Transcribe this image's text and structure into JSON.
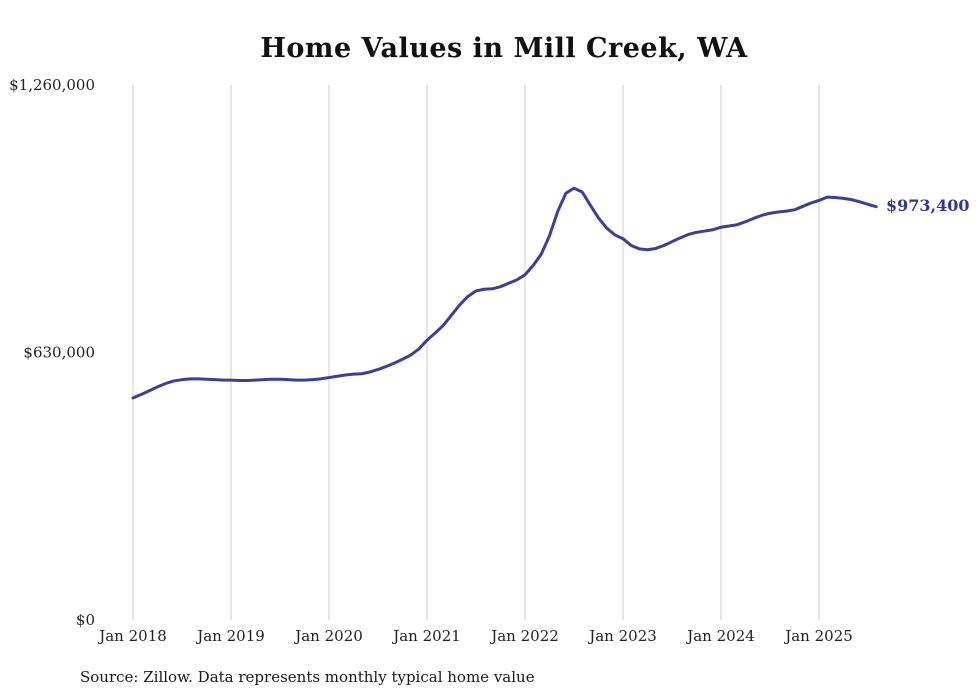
{
  "page": {
    "title": "Home Values in Mill Creek, WA",
    "source_note": "Source: Zillow. Data represents monthly typical home value"
  },
  "annotation": {
    "latest_value_label": "$973,400"
  },
  "chart_data": {
    "type": "line",
    "title": "Home Values in Mill Creek, WA",
    "series_name": "Monthly typical home value",
    "xlabel": "",
    "ylabel": "",
    "ylim": [
      0,
      1260000
    ],
    "grid": "vertical-only",
    "legend": "none",
    "line_color": "#3d3d9c",
    "gridline_color": "#cccccc",
    "latest_value": 973400,
    "latest_value_label": "$973,400",
    "x_tick_labels": [
      "Jan 2018",
      "Jan 2019",
      "Jan 2020",
      "Jan 2021",
      "Jan 2022",
      "Jan 2023",
      "Jan 2024",
      "Jan 2025"
    ],
    "y_ticks": [
      {
        "label": "$0",
        "value": 0
      },
      {
        "label": "$630,000",
        "value": 630000
      },
      {
        "label": "$1,260,000",
        "value": 1260000
      }
    ],
    "x": [
      "2018-01",
      "2018-02",
      "2018-03",
      "2018-04",
      "2018-05",
      "2018-06",
      "2018-07",
      "2018-08",
      "2018-09",
      "2018-10",
      "2018-11",
      "2018-12",
      "2019-01",
      "2019-02",
      "2019-03",
      "2019-04",
      "2019-05",
      "2019-06",
      "2019-07",
      "2019-08",
      "2019-09",
      "2019-10",
      "2019-11",
      "2019-12",
      "2020-01",
      "2020-02",
      "2020-03",
      "2020-04",
      "2020-05",
      "2020-06",
      "2020-07",
      "2020-08",
      "2020-09",
      "2020-10",
      "2020-11",
      "2020-12",
      "2021-01",
      "2021-02",
      "2021-03",
      "2021-04",
      "2021-05",
      "2021-06",
      "2021-07",
      "2021-08",
      "2021-09",
      "2021-10",
      "2021-11",
      "2021-12",
      "2022-01",
      "2022-02",
      "2022-03",
      "2022-04",
      "2022-05",
      "2022-06",
      "2022-07",
      "2022-08",
      "2022-09",
      "2022-10",
      "2022-11",
      "2022-12",
      "2023-01",
      "2023-02",
      "2023-03",
      "2023-04",
      "2023-05",
      "2023-06",
      "2023-07",
      "2023-08",
      "2023-09",
      "2023-10",
      "2023-11",
      "2023-12",
      "2024-01",
      "2024-02",
      "2024-03",
      "2024-04",
      "2024-05",
      "2024-06",
      "2024-07",
      "2024-08",
      "2024-09",
      "2024-10",
      "2024-11",
      "2024-12",
      "2025-01",
      "2025-02",
      "2025-03",
      "2025-04",
      "2025-05",
      "2025-06",
      "2025-07",
      "2025-08"
    ],
    "values": [
      523000,
      531000,
      540000,
      549000,
      557000,
      563000,
      566000,
      568000,
      568000,
      567000,
      566000,
      565000,
      565000,
      564000,
      564000,
      565000,
      566000,
      567000,
      567000,
      566000,
      565000,
      565000,
      566000,
      568000,
      571000,
      574000,
      577000,
      579000,
      580000,
      584000,
      590000,
      597000,
      605000,
      614000,
      624000,
      638000,
      659000,
      676000,
      694000,
      718000,
      742000,
      762000,
      775000,
      779000,
      780000,
      785000,
      793000,
      801000,
      813000,
      835000,
      862000,
      905000,
      962000,
      1005000,
      1017000,
      1008000,
      977000,
      947000,
      923000,
      907000,
      898000,
      882000,
      874000,
      872000,
      875000,
      882000,
      891000,
      900000,
      908000,
      913000,
      916000,
      919000,
      925000,
      928000,
      931000,
      938000,
      946000,
      953000,
      958000,
      961000,
      963000,
      966000,
      974000,
      982000,
      988000,
      996000,
      995000,
      993000,
      990000,
      985000,
      979000,
      973400
    ]
  }
}
